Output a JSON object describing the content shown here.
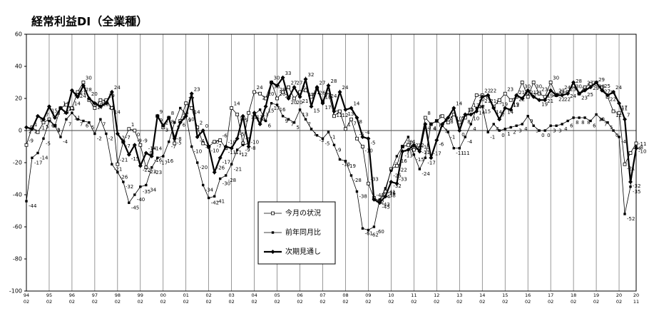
{
  "chart_data": {
    "type": "line",
    "title": "経常利益DI（全業種）",
    "categories": [
      {
        "year": "94",
        "month": "02"
      },
      null,
      null,
      null,
      {
        "year": "95",
        "month": "02"
      },
      null,
      null,
      null,
      {
        "year": "96",
        "month": "02"
      },
      null,
      null,
      null,
      {
        "year": "97",
        "month": "02"
      },
      null,
      null,
      null,
      {
        "year": "98",
        "month": "02"
      },
      null,
      null,
      null,
      {
        "year": "99",
        "month": "02"
      },
      null,
      null,
      null,
      {
        "year": "00",
        "month": "02"
      },
      null,
      null,
      null,
      {
        "year": "01",
        "month": "02"
      },
      null,
      null,
      null,
      {
        "year": "02",
        "month": "02"
      },
      null,
      null,
      null,
      {
        "year": "03",
        "month": "02"
      },
      null,
      null,
      null,
      {
        "year": "04",
        "month": "02"
      },
      null,
      null,
      null,
      {
        "year": "05",
        "month": "02"
      },
      null,
      null,
      null,
      {
        "year": "06",
        "month": "02"
      },
      null,
      null,
      null,
      {
        "year": "07",
        "month": "02"
      },
      null,
      null,
      null,
      {
        "year": "08",
        "month": "02"
      },
      null,
      null,
      null,
      {
        "year": "09",
        "month": "02"
      },
      null,
      null,
      null,
      {
        "year": "10",
        "month": "02"
      },
      null,
      null,
      null,
      {
        "year": "11",
        "month": "02"
      },
      null,
      null,
      null,
      {
        "year": "12",
        "month": "02"
      },
      null,
      null,
      null,
      {
        "year": "13",
        "month": "02"
      },
      null,
      null,
      null,
      {
        "year": "14",
        "month": "02"
      },
      null,
      null,
      null,
      {
        "year": "15",
        "month": "02"
      },
      null,
      null,
      null,
      {
        "year": "16",
        "month": "02"
      },
      null,
      null,
      null,
      {
        "year": "17",
        "month": "02"
      },
      null,
      null,
      null,
      {
        "year": "18",
        "month": "02"
      },
      null,
      null,
      null,
      {
        "year": "19",
        "month": "02"
      },
      null,
      null,
      null,
      {
        "year": "20",
        "month": "02"
      },
      null,
      null,
      {
        "year": "20",
        "month": "11"
      }
    ],
    "series": [
      {
        "name": "今月の状況",
        "color": "#000000",
        "marker": "open-square",
        "values": [
          -9,
          2,
          -1,
          5,
          7,
          3,
          14,
          16,
          14,
          24,
          30,
          19,
          14,
          19,
          19,
          14,
          -21,
          -7,
          1,
          0,
          -9,
          -23,
          -14,
          9,
          2,
          8,
          -8,
          6,
          17,
          14,
          2,
          -8,
          -10,
          -7,
          -6,
          -11,
          14,
          10,
          -8,
          11,
          24,
          23,
          20,
          30,
          20,
          24,
          27,
          20,
          24,
          25,
          21,
          26,
          18,
          24,
          9,
          12,
          1,
          7,
          -5,
          -10,
          -33,
          -42,
          -44,
          -38,
          -24,
          -22,
          -10,
          -9,
          -12,
          -11,
          8,
          4,
          6,
          9,
          5,
          10,
          5,
          8,
          13,
          22,
          22,
          21,
          15,
          19,
          23,
          19,
          21,
          30,
          21,
          30,
          23,
          21,
          30,
          22,
          24,
          24,
          28,
          23,
          27,
          29,
          29,
          27,
          21,
          12,
          11,
          -21,
          -14,
          -8
        ]
      },
      {
        "name": "前年同月比",
        "color": "#000000",
        "marker": "filled-square",
        "values": [
          -44,
          -17,
          -14,
          -5,
          6,
          3,
          -4,
          7,
          11,
          7,
          6,
          5,
          -2,
          7,
          -2,
          -21,
          -26,
          -32,
          -45,
          -40,
          -35,
          -34,
          -23,
          -17,
          -16,
          -7,
          5,
          14,
          10,
          -10,
          -20,
          -34,
          -42,
          -41,
          -30,
          -28,
          -21,
          -12,
          -9,
          -8,
          10,
          13,
          6,
          17,
          16,
          9,
          7,
          5,
          13,
          7,
          1,
          -3,
          -5,
          -1,
          -9,
          -18,
          -19,
          -28,
          -38,
          -61,
          -62,
          -60,
          -43,
          -36,
          -25,
          -16,
          -10,
          -4,
          -15,
          -24,
          -17,
          4,
          6,
          3,
          -1,
          -11,
          -11,
          -4,
          4,
          14,
          15,
          -1,
          4,
          0,
          1,
          2,
          3,
          4,
          9,
          3,
          0,
          0,
          3,
          3,
          4,
          6,
          8,
          8,
          8,
          6,
          10,
          7,
          5,
          0,
          -4,
          -52,
          -35,
          -10
        ]
      },
      {
        "name": "次期見通し",
        "color": "#000000",
        "marker": "diamond",
        "values": [
          2,
          1,
          9,
          7,
          15,
          8,
          14,
          11,
          25,
          21,
          28,
          20,
          17,
          15,
          17,
          24,
          -2,
          -7,
          -15,
          -9,
          -22,
          -14,
          -16,
          9,
          3,
          8,
          -5,
          5,
          9,
          23,
          -4,
          0,
          -10,
          -26,
          -17,
          -10,
          -11,
          -5,
          9,
          -10,
          11,
          4,
          15,
          30,
          28,
          33,
          20,
          27,
          21,
          32,
          15,
          27,
          17,
          28,
          12,
          24,
          13,
          14,
          8,
          -4,
          -5,
          -43,
          -45,
          -41,
          -32,
          -33,
          -13,
          -12,
          -9,
          -13,
          4,
          -17,
          -6,
          4,
          8,
          14,
          0,
          10,
          10,
          12,
          21,
          22,
          14,
          7,
          14,
          13,
          22,
          20,
          25,
          21,
          19,
          19,
          25,
          22,
          22,
          23,
          30,
          23,
          25,
          27,
          30,
          25,
          22,
          24,
          17,
          7,
          -32,
          -11
        ]
      }
    ],
    "ylim": [
      -100,
      60
    ],
    "yticks": [
      -100,
      -80,
      -60,
      -40,
      -20,
      0,
      20,
      40,
      60
    ],
    "legend": "lower-center"
  }
}
